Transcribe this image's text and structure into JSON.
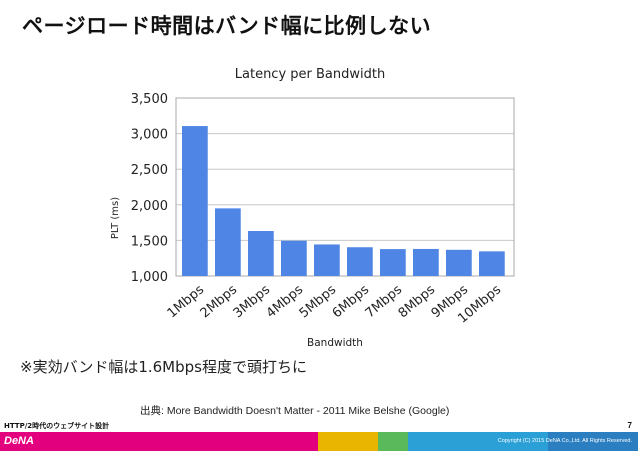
{
  "slide": {
    "title": "ページロード時間はバンド幅に比例しない",
    "note": "※実効バンド幅は1.6Mbps程度で頭打ちに",
    "source": "出典: More Bandwidth Doesn't Matter - 2011 Mike Belshe (Google)",
    "footer_label": "HTTP/2時代のウェブサイト設計",
    "page_number": "7",
    "copyright": "Copyright (C) 2015 DeNA Co.,Ltd. All Rights Reserved.",
    "logo_text": "DeNA"
  },
  "colors": {
    "bar": "#4f86e6",
    "grid": "#c8c8c8",
    "footer_segments": [
      "#e3007f",
      "#e9b500",
      "#5ab95a",
      "#2aa0d6",
      "#2b7fc1"
    ]
  },
  "chart_data": {
    "type": "bar",
    "title": "Latency per Bandwidth",
    "xlabel": "Bandwidth",
    "ylabel": "PLT (ms)",
    "categories": [
      "1Mbps",
      "2Mbps",
      "3Mbps",
      "4Mbps",
      "5Mbps",
      "6Mbps",
      "7Mbps",
      "8Mbps",
      "9Mbps",
      "10Mbps"
    ],
    "values": [
      3106,
      1950,
      1632,
      1496,
      1443,
      1404,
      1378,
      1380,
      1368,
      1346
    ],
    "ylim": [
      1000,
      3500
    ],
    "yticks": [
      "1,000",
      "1,500",
      "2,000",
      "2,500",
      "3,000",
      "3,500"
    ],
    "grid": true,
    "legend": "none"
  }
}
